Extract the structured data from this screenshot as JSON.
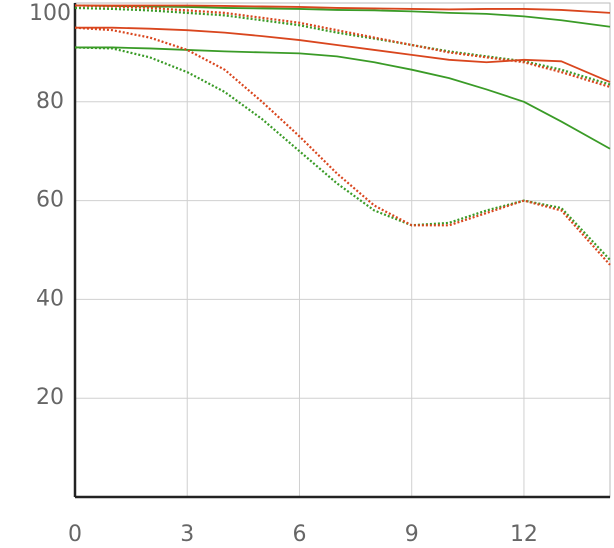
{
  "chart_data": {
    "type": "line",
    "x": [
      0,
      1,
      2,
      3,
      4,
      5,
      6,
      7,
      8,
      9,
      10,
      11,
      12,
      13,
      14.3
    ],
    "xlim": [
      0,
      14.3
    ],
    "xticks": [
      0,
      3,
      6,
      9,
      12
    ],
    "ylim": [
      0,
      100
    ],
    "yticks": [
      20,
      40,
      60,
      80,
      100
    ],
    "grid": true,
    "series": [
      {
        "color": "#3a9b27",
        "style": "solid",
        "values": [
          99.5,
          99.4,
          99.3,
          99.2,
          99,
          98.9,
          98.8,
          98.6,
          98.5,
          98.3,
          98,
          97.8,
          97.3,
          96.5,
          95.2
        ]
      },
      {
        "color": "#d9461e",
        "style": "solid",
        "values": [
          99.5,
          99.5,
          99.5,
          99.5,
          99.4,
          99.3,
          99.2,
          99,
          98.9,
          98.8,
          98.7,
          98.8,
          98.8,
          98.6,
          98
        ]
      },
      {
        "color": "#3a9b27",
        "style": "dotted",
        "values": [
          99,
          98.8,
          98.5,
          98,
          97.5,
          96.5,
          95.5,
          94,
          92.8,
          91.5,
          90.2,
          89.2,
          88.2,
          86.5,
          83.5
        ]
      },
      {
        "color": "#d9461e",
        "style": "dotted",
        "values": [
          99.5,
          99.3,
          99,
          98.5,
          98,
          97,
          96,
          94.5,
          93,
          91.5,
          90,
          89,
          88,
          86,
          83
        ]
      },
      {
        "color": "#3a9b27",
        "style": "solid",
        "values": [
          91,
          91,
          90.8,
          90.5,
          90.2,
          90,
          89.8,
          89.2,
          88,
          86.5,
          84.8,
          82.5,
          80,
          76,
          70.5
        ]
      },
      {
        "color": "#d9461e",
        "style": "solid",
        "values": [
          95,
          95,
          94.8,
          94.5,
          94,
          93.3,
          92.5,
          91.5,
          90.5,
          89.5,
          88.5,
          88,
          88.5,
          88.2,
          84
        ]
      },
      {
        "color": "#3a9b27",
        "style": "dotted",
        "values": [
          91,
          90.8,
          89,
          86,
          82,
          76.5,
          70,
          63.5,
          58,
          55,
          55.5,
          58,
          60,
          58.5,
          48
        ]
      },
      {
        "color": "#d9461e",
        "style": "dotted",
        "values": [
          95,
          94.5,
          93,
          90.5,
          86.5,
          80,
          73,
          65.5,
          59,
          55,
          55,
          57.5,
          60,
          58,
          47
        ]
      }
    ]
  }
}
